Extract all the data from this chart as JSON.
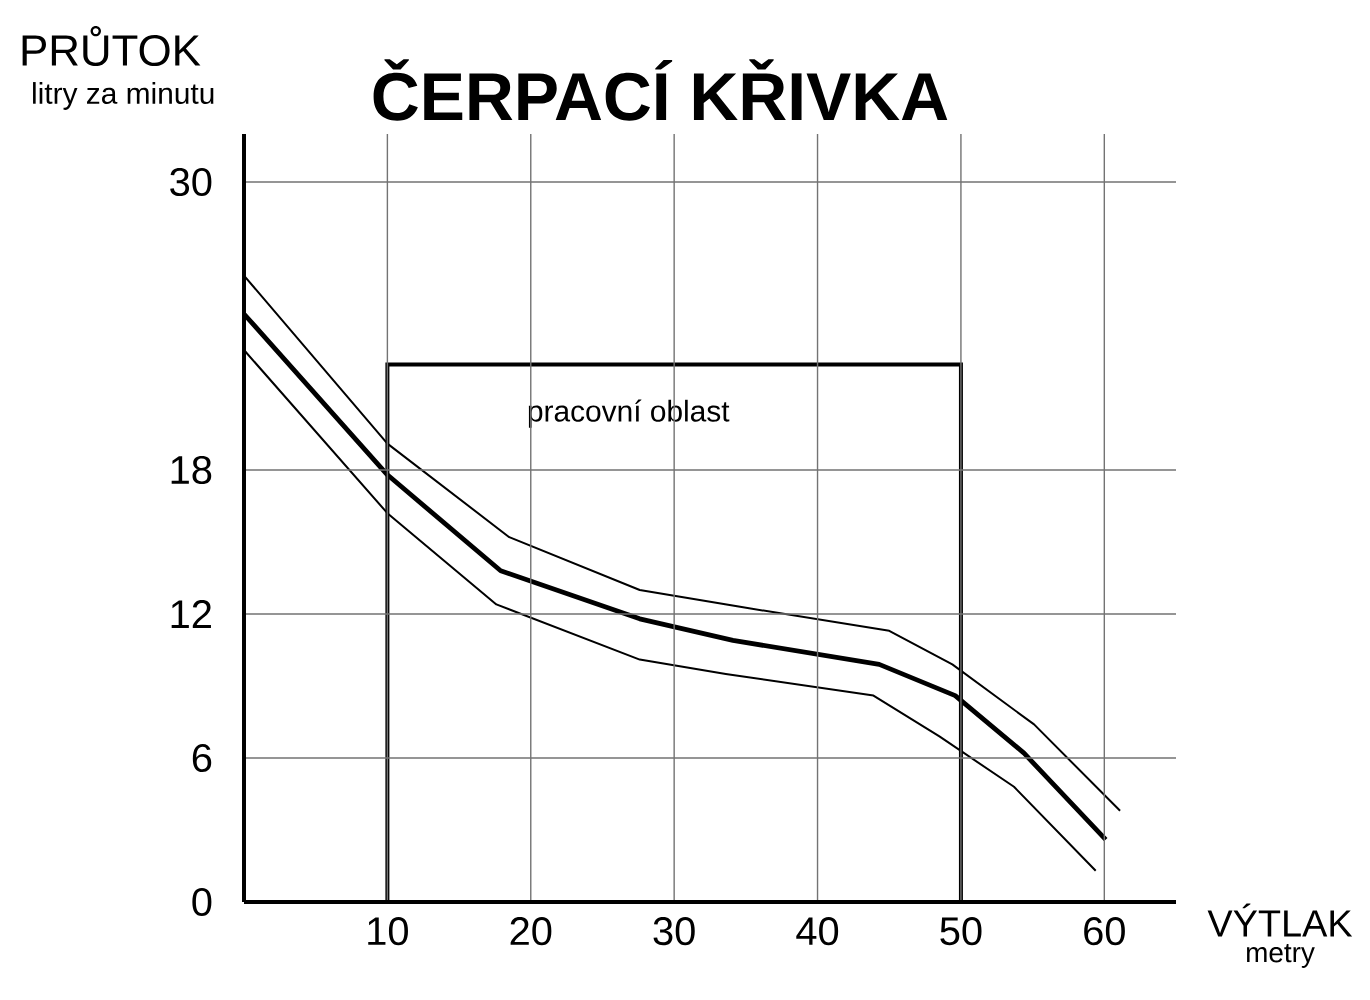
{
  "chart_data": {
    "type": "line",
    "title": "ČERPACÍ KŘIVKA",
    "xlabel": "VÝTLAK",
    "ylabel": "PRŮTOK",
    "annotations": [
      "litry za minutu",
      "metry"
    ],
    "xlim": [
      0,
      65
    ],
    "ylim": [
      0,
      32
    ],
    "xticks": [
      10,
      20,
      30,
      40,
      50,
      60
    ],
    "yticks": [
      0,
      6,
      12,
      18,
      30
    ],
    "grid": true,
    "series": [
      {
        "color": "#000000",
        "x": [
          0,
          10,
          17.9,
          27.6,
          34.1,
          44.3,
          49.6,
          54.4,
          60.1
        ],
        "values": [
          24.5,
          17.8,
          13.8,
          11.8,
          10.9,
          9.9,
          8.6,
          6.2,
          2.6
        ]
      },
      {
        "color": "#000000",
        "x": [
          0,
          10,
          18.5,
          27.6,
          34.6,
          45,
          49.4,
          55.1,
          61.1
        ],
        "values": [
          26.1,
          19.1,
          15.2,
          13.0,
          12.3,
          11.3,
          9.9,
          7.4,
          3.8
        ]
      },
      {
        "color": "#000000",
        "x": [
          0,
          10,
          17.6,
          27.6,
          33.6,
          43.9,
          48.5,
          53.7,
          59.4
        ],
        "values": [
          23.0,
          16.2,
          12.4,
          10.1,
          9.5,
          8.6,
          6.9,
          4.8,
          1.3
        ]
      }
    ],
    "bands": [
      {
        "axis": "x",
        "from": 10,
        "to": 50,
        "label": "pracovní oblast",
        "color": "#ffffff"
      }
    ]
  }
}
